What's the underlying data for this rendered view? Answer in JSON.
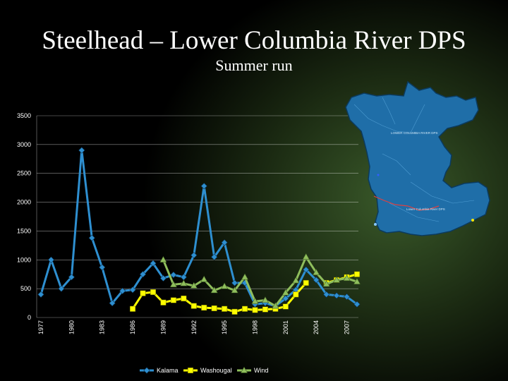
{
  "slide": {
    "title": "Steelhead – Lower Columbia River DPS",
    "subtitle": "Summer run"
  },
  "map": {
    "label_top": "LOWER COLUMBIA RIVER DPS",
    "label_bottom": "Lower Columbia River DPS"
  },
  "chart_data": {
    "type": "line",
    "x": [
      1977,
      1978,
      1979,
      1980,
      1981,
      1982,
      1983,
      1984,
      1985,
      1986,
      1987,
      1988,
      1989,
      1990,
      1991,
      1992,
      1993,
      1994,
      1995,
      1996,
      1997,
      1998,
      1999,
      2000,
      2001,
      2002,
      2003,
      2004,
      2005,
      2006,
      2007,
      2008
    ],
    "x_tick_labels": [
      "1977",
      "1980",
      "1983",
      "1986",
      "1989",
      "1992",
      "1995",
      "1998",
      "2001",
      "2004",
      "2007"
    ],
    "ylim": [
      0,
      3500
    ],
    "y_ticks": [
      0,
      500,
      1000,
      1500,
      2000,
      2500,
      3000,
      3500
    ],
    "grid": true,
    "legend_position": "bottom",
    "series": [
      {
        "name": "Kalama",
        "color": "#2e8fd0",
        "marker": "diamond",
        "values": [
          400,
          1000,
          500,
          700,
          2900,
          1380,
          870,
          250,
          460,
          480,
          750,
          940,
          680,
          740,
          700,
          1080,
          2280,
          1050,
          1300,
          600,
          600,
          230,
          250,
          200,
          330,
          480,
          830,
          650,
          400,
          380,
          360,
          230
        ]
      },
      {
        "name": "Washougal",
        "color": "#ffff00",
        "marker": "square",
        "values": [
          null,
          null,
          null,
          null,
          null,
          null,
          null,
          null,
          null,
          150,
          420,
          440,
          260,
          300,
          330,
          200,
          170,
          160,
          150,
          100,
          150,
          130,
          140,
          150,
          190,
          400,
          600,
          null,
          600,
          650,
          700,
          750
        ]
      },
      {
        "name": "Wind",
        "color": "#8fbe5c",
        "marker": "triangle",
        "values": [
          null,
          null,
          null,
          null,
          null,
          null,
          null,
          null,
          null,
          null,
          null,
          null,
          1000,
          570,
          590,
          550,
          660,
          470,
          540,
          470,
          700,
          280,
          300,
          200,
          430,
          640,
          1050,
          780,
          580,
          650,
          680,
          620
        ]
      }
    ]
  }
}
